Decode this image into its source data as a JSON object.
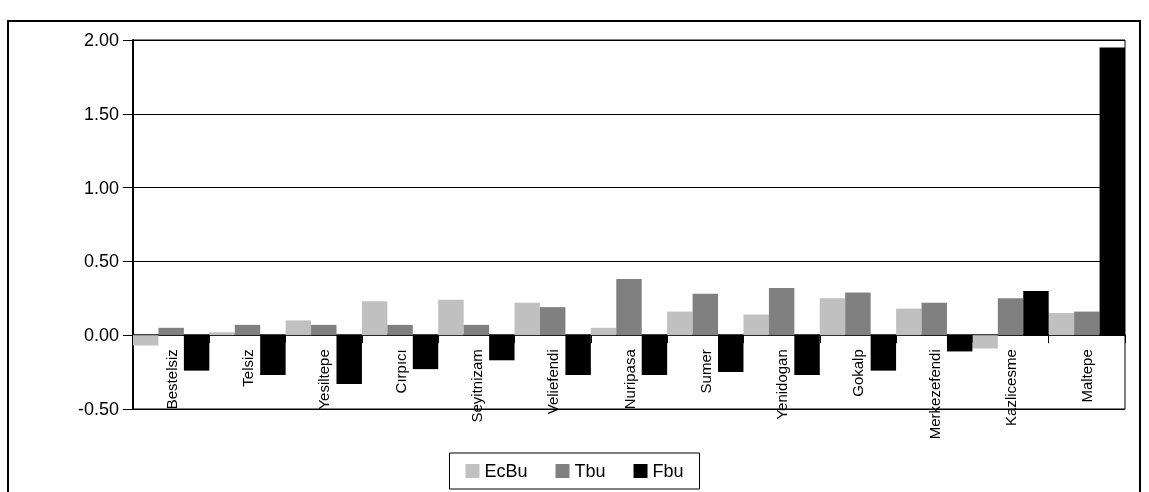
{
  "chart_data": {
    "type": "bar",
    "categories": [
      "Bestelsiz",
      "Telsiz",
      "Yesiltepe",
      "Cırpıcı",
      "Seyitnizam",
      "Veliefendi",
      "Nuripasa",
      "Sumer",
      "Yenidogan",
      "Gokalp",
      "Merkezefendi",
      "Kazlicesme",
      "Maltepe"
    ],
    "series": [
      {
        "name": "EcBu",
        "color": "#c0c0c0",
        "values": [
          -0.07,
          0.02,
          0.1,
          0.23,
          0.24,
          0.22,
          0.05,
          0.16,
          0.14,
          0.25,
          0.18,
          -0.09,
          0.15
        ]
      },
      {
        "name": "Tbu",
        "color": "#808080",
        "values": [
          0.05,
          0.07,
          0.07,
          0.07,
          0.07,
          0.19,
          0.38,
          0.28,
          0.32,
          0.29,
          0.22,
          0.25,
          0.16
        ]
      },
      {
        "name": "Fbu",
        "color": "#000000",
        "values": [
          -0.24,
          -0.27,
          -0.33,
          -0.23,
          -0.17,
          -0.27,
          -0.27,
          -0.25,
          -0.27,
          -0.24,
          -0.11,
          0.3,
          1.95
        ]
      }
    ],
    "ylim": [
      -0.5,
      2
    ],
    "yticks": [
      {
        "value": -0.5,
        "label": "-0.50"
      },
      {
        "value": 0,
        "label": "0.00"
      },
      {
        "value": 0.5,
        "label": "0.50"
      },
      {
        "value": 1,
        "label": "1.00"
      },
      {
        "value": 1.5,
        "label": "1.50"
      },
      {
        "value": 2,
        "label": "2.00"
      }
    ],
    "grid": "y",
    "legend": "bottom"
  }
}
